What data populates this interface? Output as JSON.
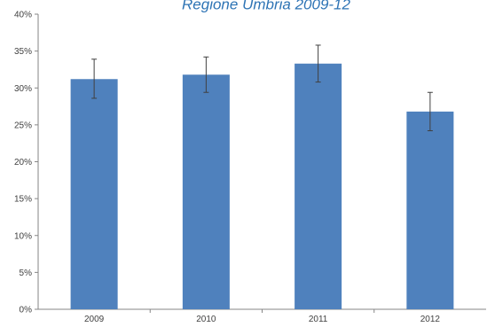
{
  "chart_data": {
    "type": "bar",
    "title": "Regione Umbria 2009-12",
    "categories": [
      "2009",
      "2010",
      "2011",
      "2012"
    ],
    "values": [
      31.2,
      31.8,
      33.3,
      26.8
    ],
    "error_high": [
      33.9,
      34.2,
      35.8,
      29.4
    ],
    "error_low": [
      28.6,
      29.4,
      30.8,
      24.2
    ],
    "ylim": [
      0,
      40
    ],
    "yticks": [
      0,
      5,
      10,
      15,
      20,
      25,
      30,
      35,
      40
    ],
    "ytick_labels": [
      "0%",
      "5%",
      "10%",
      "15%",
      "20%",
      "25%",
      "30%",
      "35%",
      "40%"
    ],
    "xlabel": "",
    "ylabel": "",
    "grid": false,
    "colors": {
      "bar": "#4F81BD",
      "title": "#2E74B5"
    }
  }
}
